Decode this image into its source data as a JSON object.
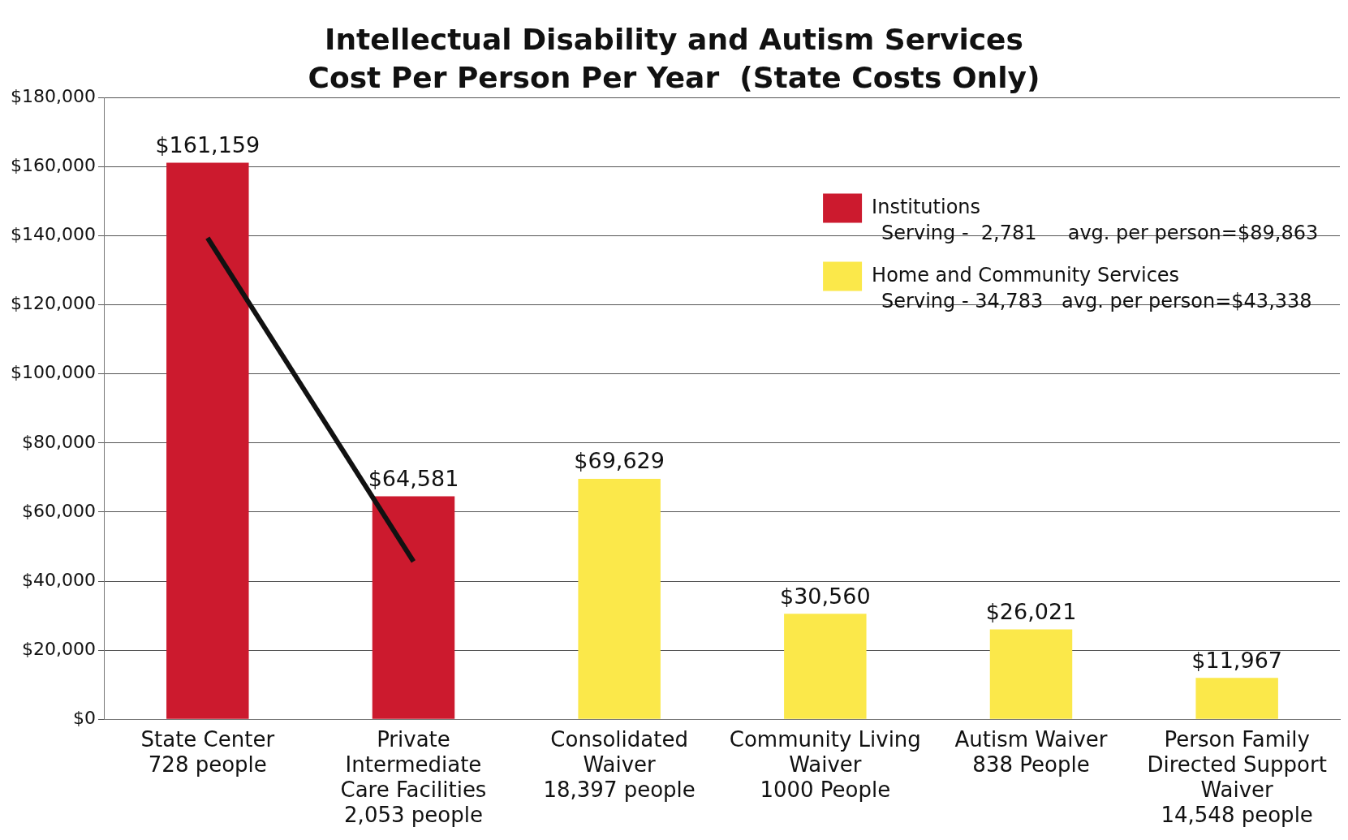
{
  "chart_data": {
    "type": "bar",
    "title": "Intellectual Disability and Autism Services",
    "subtitle": "Cost Per Person Per Year  (State Costs Only)",
    "categories": [
      "State Center\n728 people",
      "Private\nIntermediate\nCare Facilities\n2,053 people",
      "Consolidated\nWaiver\n18,397 people",
      "Community Living\nWaiver\n1000 People",
      "Autism Waiver\n838 People",
      "Person Family\nDirected Support\nWaiver\n14,548 people"
    ],
    "series": [
      {
        "name": "Institutions",
        "color": "#cc1a2e",
        "values": [
          161159,
          64581,
          null,
          null,
          null,
          null
        ],
        "value_labels": [
          "$161,159",
          "$64,581",
          null,
          null,
          null,
          null
        ]
      },
      {
        "name": "Home and Community Services",
        "color": "#fbe84a",
        "values": [
          null,
          null,
          69629,
          30560,
          26021,
          11967
        ],
        "value_labels": [
          null,
          null,
          "$69,629",
          "$30,560",
          "$26,021",
          "$11,967"
        ]
      },
      {
        "type": "line",
        "color": "#111111",
        "values": [
          139400,
          45700,
          null,
          null,
          null,
          null
        ]
      }
    ],
    "annotations": [
      "Serving -  2,781     avg. per person=$89,863",
      "Serving - 34,783   avg. per person=$43,338"
    ],
    "ylim": [
      0,
      180000
    ],
    "yticks": [
      {
        "value": 0,
        "label": "$0"
      },
      {
        "value": 20000,
        "label": "$20,000"
      },
      {
        "value": 40000,
        "label": "$40,000"
      },
      {
        "value": 60000,
        "label": "$60,000"
      },
      {
        "value": 80000,
        "label": "$80,000"
      },
      {
        "value": 100000,
        "label": "$100,000"
      },
      {
        "value": 120000,
        "label": "$120,000"
      },
      {
        "value": 140000,
        "label": "$140,000"
      },
      {
        "value": 160000,
        "label": "$160,000"
      },
      {
        "value": 180000,
        "label": "$180,000"
      }
    ],
    "grid": "y",
    "legend": "top right",
    "marker": "none",
    "line_style": "solid"
  }
}
